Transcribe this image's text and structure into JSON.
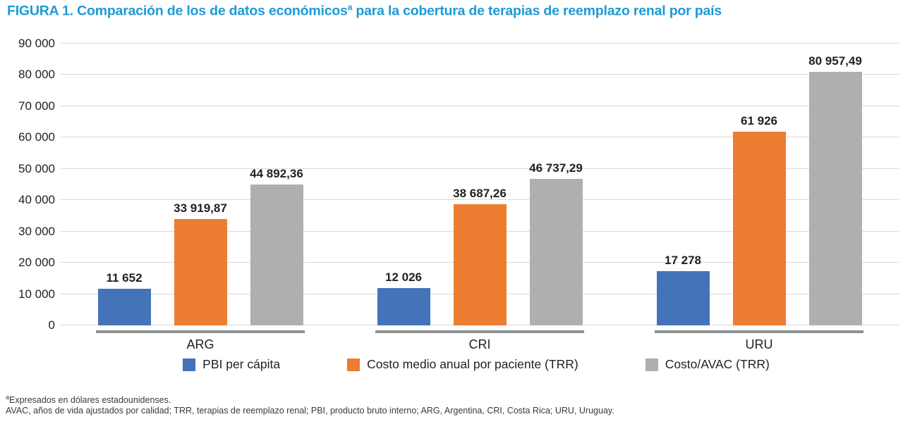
{
  "figure": {
    "title": {
      "part1": "FIGURA 1. Comparación de los de datos económicos",
      "sup": "a",
      "part2": " para la cobertura de terapias de reemplazo renal por país"
    },
    "footnotes": {
      "line1_sup": "a",
      "line1": "Expresados en dólares estadounidenses.",
      "line2": "AVAC, años de vida ajustados por calidad; TRR, terapias de reemplazo renal; PBI, producto bruto interno; ARG, Argentina, CRI, Costa Rica; URU, Uruguay."
    }
  },
  "colors": {
    "title_blue": "#1b9bd7",
    "text_dark": "#231f20",
    "gridline": "#d9d9d9",
    "category_underline": "#8e9194"
  },
  "chart_data": {
    "type": "bar",
    "title": "FIGURA 1. Comparación de los de datos económicosª para la cobertura de terapias de reemplazo renal por país",
    "categories": [
      "ARG",
      "CRI",
      "URU"
    ],
    "series": [
      {
        "name": "PBI per cápita",
        "color": "#4573b9",
        "values": [
          11652,
          12026,
          17278
        ],
        "value_labels": [
          "11 652",
          "12 026",
          "17 278"
        ]
      },
      {
        "name": "Costo medio anual por paciente (TRR)",
        "color": "#ed7d31",
        "values": [
          33919.87,
          38687.26,
          61926
        ],
        "value_labels": [
          "33 919,87",
          "38 687,26",
          "61 926"
        ]
      },
      {
        "name": "Costo/AVAC (TRR)",
        "color": "#afafb2",
        "values": [
          44892.36,
          46737.29,
          80957.49
        ],
        "value_labels": [
          "44 892,36",
          "46 737,29",
          "80 957,49"
        ]
      }
    ],
    "xlabel": "",
    "ylabel": "",
    "ylim": [
      0,
      90000
    ],
    "ytick_step": 10000,
    "yticks": [
      {
        "value": 90000,
        "label": "90 000"
      },
      {
        "value": 80000,
        "label": "80 000"
      },
      {
        "value": 70000,
        "label": "70 000"
      },
      {
        "value": 60000,
        "label": "60 000"
      },
      {
        "value": 50000,
        "label": "50 000"
      },
      {
        "value": 40000,
        "label": "40 000"
      },
      {
        "value": 30000,
        "label": "30 000"
      },
      {
        "value": 20000,
        "label": "20 000"
      },
      {
        "value": 10000,
        "label": "10 000"
      },
      {
        "value": 0,
        "label": "0"
      }
    ],
    "grid": true,
    "legend_position": "bottom",
    "value_labels_shown": true
  }
}
